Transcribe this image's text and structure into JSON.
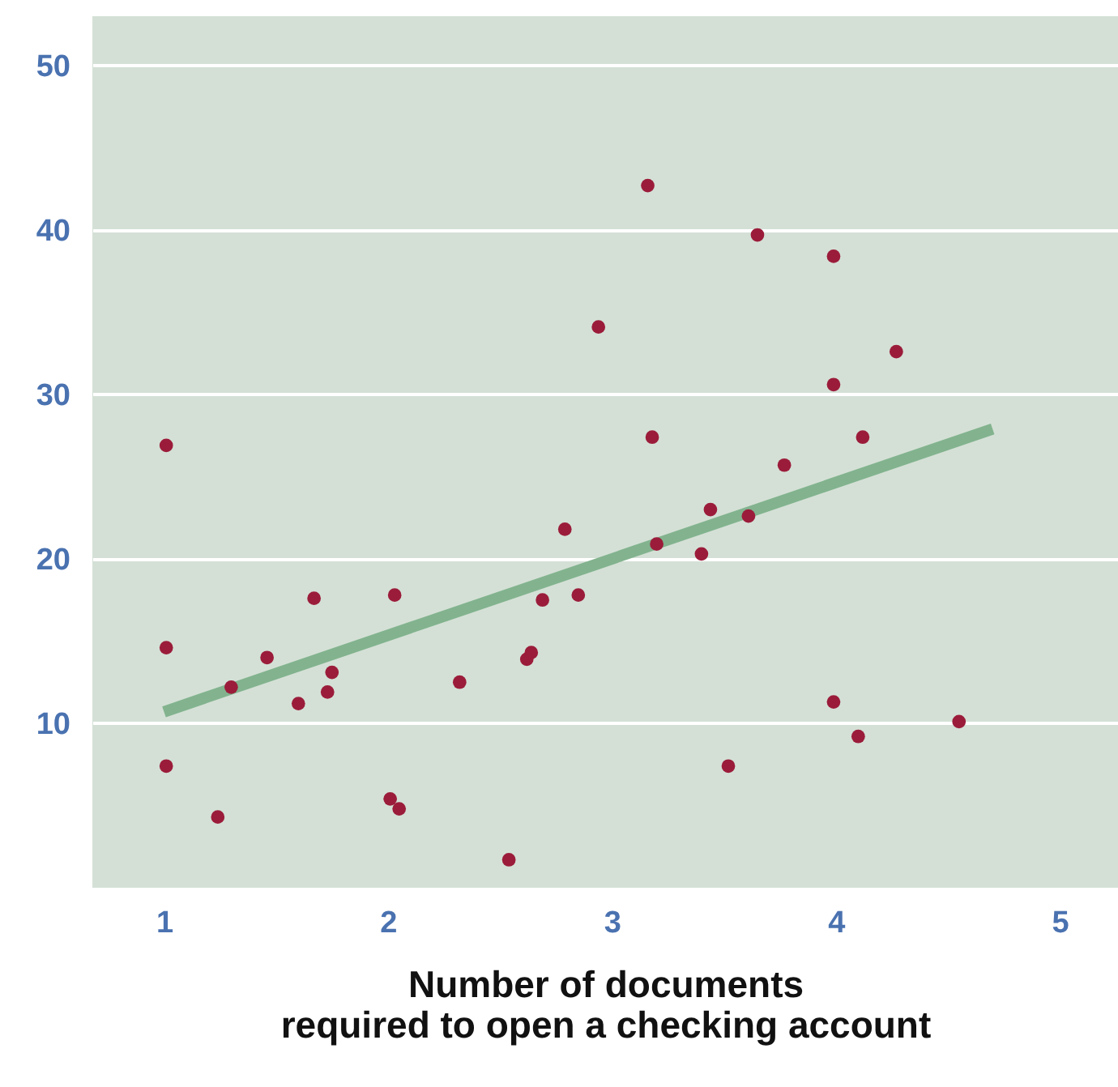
{
  "chart_data": {
    "type": "scatter",
    "xlabel": "Number of documents\nrequired to open a checking account",
    "xlim": [
      0.68,
      5.26
    ],
    "ylim": [
      0,
      53
    ],
    "xticks": [
      1,
      2,
      3,
      4,
      5
    ],
    "yticks": [
      10,
      20,
      30,
      40,
      50
    ],
    "grid": "y",
    "marker": "circle",
    "series": [
      {
        "color": "#9b1c3a",
        "x": [
          1.01,
          1.01,
          1.01,
          1.24,
          1.3,
          1.46,
          1.6,
          1.67,
          1.73,
          1.75,
          2.01,
          2.03,
          2.05,
          2.32,
          2.54,
          2.62,
          2.64,
          2.69,
          2.79,
          2.85,
          2.94,
          3.16,
          3.18,
          3.2,
          3.4,
          3.44,
          3.52,
          3.61,
          3.65,
          3.77,
          3.99,
          3.99,
          3.99,
          4.1,
          4.12,
          4.27,
          4.55
        ],
        "values": [
          26.9,
          14.6,
          7.4,
          4.3,
          12.2,
          14.0,
          11.2,
          17.6,
          11.9,
          13.1,
          5.4,
          17.8,
          4.8,
          12.5,
          1.7,
          13.9,
          14.3,
          17.5,
          21.8,
          17.8,
          34.1,
          42.7,
          27.4,
          20.9,
          20.3,
          23.0,
          7.4,
          22.6,
          39.7,
          25.7,
          38.4,
          30.6,
          11.3,
          9.2,
          27.4,
          32.6,
          10.1
        ]
      },
      {
        "type": "line",
        "marker": "none",
        "color": "#82b38e",
        "x": [
          1.0,
          4.7
        ],
        "values": [
          10.7,
          27.9
        ]
      }
    ]
  }
}
